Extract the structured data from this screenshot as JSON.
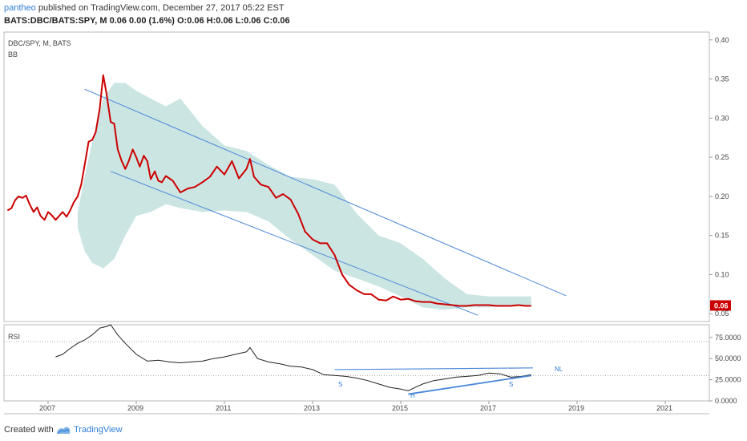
{
  "header": {
    "publisher": "pantheo",
    "published_text": "published on TradingView.com, December 27, 2017 05:22 EST",
    "ohlc_text": "BATS:DBC/BATS:SPY, M  0.06  0.00 (1.6%)  O:0.06  H:0.06  L:0.06  C:0.06"
  },
  "footer": {
    "created_with": "Created with",
    "brand": "TradingView"
  },
  "chart_data": [
    {
      "type": "line",
      "title": "DBC/SPY, M, BATS",
      "indicator": "BB",
      "price_label": "0.06",
      "ylim": [
        0.04,
        0.41
      ],
      "yticks": [
        0.05,
        0.1,
        0.15,
        0.2,
        0.25,
        0.3,
        0.35,
        0.4
      ],
      "ytick_labels": [
        "0.05",
        "0.10",
        "0.15",
        "0.20",
        "0.25",
        "0.30",
        "0.35",
        "0.40"
      ],
      "xlim": [
        2006.0,
        2022.0
      ],
      "xticks": [
        2007,
        2009,
        2011,
        2013,
        2015,
        2017,
        2019,
        2021
      ],
      "xtick_labels": [
        "2007",
        "2009",
        "2011",
        "2013",
        "2015",
        "2017",
        "2019",
        "2021"
      ],
      "grid": false,
      "colors": {
        "line": "#cc0000",
        "band": "#b9dcd9",
        "trendline": "#4a86d8",
        "price_bg": "#cc0000"
      },
      "series": [
        {
          "x": [
            2006.08,
            2006.17,
            2006.25,
            2006.33,
            2006.42,
            2006.5,
            2006.58,
            2006.67,
            2006.75,
            2006.83,
            2006.92,
            2007.0,
            2007.08,
            2007.17,
            2007.25,
            2007.33,
            2007.42,
            2007.5,
            2007.58,
            2007.67,
            2007.75,
            2007.83,
            2007.92,
            2008.0,
            2008.08,
            2008.17,
            2008.25,
            2008.33,
            2008.42,
            2008.5,
            2008.58,
            2008.67,
            2008.75,
            2008.83,
            2008.92,
            2009.0,
            2009.08,
            2009.17,
            2009.25,
            2009.33,
            2009.42,
            2009.5,
            2009.58,
            2009.67,
            2009.75,
            2009.83,
            2009.92,
            2010.0,
            2010.17,
            2010.33,
            2010.5,
            2010.67,
            2010.83,
            2011.0,
            2011.17,
            2011.33,
            2011.5,
            2011.58,
            2011.67,
            2011.83,
            2012.0,
            2012.17,
            2012.33,
            2012.5,
            2012.67,
            2012.83,
            2013.0,
            2013.17,
            2013.33,
            2013.5,
            2013.67,
            2013.83,
            2014.0,
            2014.17,
            2014.33,
            2014.5,
            2014.67,
            2014.83,
            2015.0,
            2015.17,
            2015.33,
            2015.5,
            2015.67,
            2015.83,
            2016.0,
            2016.17,
            2016.33,
            2016.5,
            2016.67,
            2016.83,
            2017.0,
            2017.17,
            2017.33,
            2017.5,
            2017.67,
            2017.83,
            2017.96
          ],
          "values": [
            0.182,
            0.185,
            0.195,
            0.2,
            0.198,
            0.201,
            0.19,
            0.18,
            0.186,
            0.175,
            0.17,
            0.18,
            0.176,
            0.17,
            0.175,
            0.18,
            0.174,
            0.182,
            0.192,
            0.2,
            0.215,
            0.24,
            0.27,
            0.272,
            0.282,
            0.312,
            0.355,
            0.33,
            0.295,
            0.293,
            0.26,
            0.245,
            0.235,
            0.245,
            0.26,
            0.25,
            0.238,
            0.252,
            0.245,
            0.222,
            0.232,
            0.22,
            0.218,
            0.226,
            0.223,
            0.22,
            0.212,
            0.205,
            0.21,
            0.212,
            0.218,
            0.225,
            0.238,
            0.228,
            0.245,
            0.223,
            0.235,
            0.248,
            0.225,
            0.215,
            0.212,
            0.198,
            0.203,
            0.196,
            0.178,
            0.155,
            0.145,
            0.14,
            0.14,
            0.125,
            0.1,
            0.087,
            0.08,
            0.075,
            0.075,
            0.068,
            0.067,
            0.072,
            0.068,
            0.069,
            0.066,
            0.065,
            0.065,
            0.063,
            0.062,
            0.061,
            0.06,
            0.06,
            0.061,
            0.061,
            0.061,
            0.06,
            0.06,
            0.06,
            0.061,
            0.06,
            0.06
          ]
        }
      ],
      "bands": {
        "x": [
          2007.67,
          2007.83,
          2008.0,
          2008.25,
          2008.5,
          2008.75,
          2009.0,
          2009.33,
          2009.67,
          2010.0,
          2010.5,
          2011.0,
          2011.5,
          2012.0,
          2012.5,
          2013.0,
          2013.5,
          2014.0,
          2014.5,
          2015.0,
          2015.5,
          2016.0,
          2016.5,
          2017.0,
          2017.5,
          2017.96
        ],
        "upper": [
          0.18,
          0.225,
          0.27,
          0.325,
          0.345,
          0.345,
          0.335,
          0.325,
          0.315,
          0.325,
          0.29,
          0.265,
          0.258,
          0.24,
          0.225,
          0.222,
          0.215,
          0.178,
          0.15,
          0.14,
          0.12,
          0.095,
          0.075,
          0.072,
          0.072,
          0.072
        ],
        "lower": [
          0.16,
          0.13,
          0.115,
          0.108,
          0.12,
          0.15,
          0.175,
          0.18,
          0.19,
          0.185,
          0.18,
          0.182,
          0.18,
          0.168,
          0.145,
          0.125,
          0.105,
          0.095,
          0.085,
          0.072,
          0.058,
          0.055,
          0.058,
          0.058,
          0.06,
          0.06
        ]
      },
      "trendlines": [
        {
          "x": [
            2007.83,
            2018.75
          ],
          "values": [
            0.337,
            0.073
          ]
        },
        {
          "x": [
            2008.42,
            2016.75
          ],
          "values": [
            0.232,
            0.048
          ]
        }
      ]
    },
    {
      "type": "line",
      "title": "RSI",
      "ylim": [
        0,
        90
      ],
      "yticks": [
        0,
        25,
        50,
        75
      ],
      "ytick_labels": [
        "0.0000",
        "25.0000",
        "50.0000",
        "75.0000"
      ],
      "reference_lines": [
        30,
        70
      ],
      "colors": {
        "line": "#222222",
        "neckline": "#4a86d8",
        "trendline": "#4a86d8"
      },
      "series": [
        {
          "x": [
            2007.17,
            2007.33,
            2007.5,
            2007.67,
            2007.83,
            2008.0,
            2008.17,
            2008.33,
            2008.42,
            2008.58,
            2008.75,
            2009.0,
            2009.25,
            2009.5,
            2009.75,
            2010.0,
            2010.25,
            2010.5,
            2010.75,
            2011.0,
            2011.25,
            2011.5,
            2011.58,
            2011.75,
            2012.0,
            2012.25,
            2012.5,
            2012.75,
            2013.0,
            2013.25,
            2013.5,
            2013.75,
            2014.0,
            2014.25,
            2014.5,
            2014.75,
            2015.0,
            2015.17,
            2015.33,
            2015.5,
            2015.75,
            2016.0,
            2016.25,
            2016.5,
            2016.75,
            2017.0,
            2017.25,
            2017.5,
            2017.75,
            2017.96
          ],
          "values": [
            52,
            55,
            62,
            68,
            72,
            78,
            86,
            88,
            90,
            78,
            68,
            55,
            47,
            48,
            46,
            45,
            46,
            47,
            50,
            52,
            55,
            58,
            63,
            50,
            46,
            44,
            41,
            40,
            37,
            31,
            30,
            29,
            27,
            24,
            20,
            16,
            14,
            12,
            16,
            20,
            24,
            26,
            28,
            29,
            30,
            33,
            32,
            28,
            29,
            31
          ]
        }
      ],
      "annotations": [
        "S",
        "H",
        "S",
        "NL"
      ],
      "neckline": {
        "x": [
          2013.5,
          2018.0
        ],
        "values": [
          37,
          39
        ]
      },
      "rising_line": {
        "x": [
          2015.17,
          2017.96
        ],
        "values": [
          8,
          30
        ]
      }
    }
  ]
}
